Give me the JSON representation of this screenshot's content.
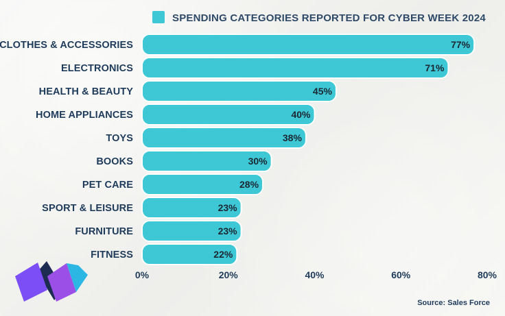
{
  "colors": {
    "bar": "#3ec8d6",
    "legend_swatch": "#3ec8d6",
    "label_text": "#1f3b5a",
    "value_text": "#1b2733",
    "logo_purple": "#7b4ef6",
    "logo_magenta": "#9b4fe7",
    "logo_cyan": "#2bb6e3",
    "logo_navy": "#1e2c54"
  },
  "chart_data": {
    "type": "bar",
    "orientation": "horizontal",
    "legend": "SPENDING CATEGORIES REPORTED FOR CYBER WEEK 2024",
    "legend_position": "top",
    "categories": [
      "CLOTHES & ACCESSORIES",
      "ELECTRONICS",
      "HEALTH & BEAUTY",
      "HOME APPLIANCES",
      "TOYS",
      "BOOKS",
      "PET CARE",
      "SPORT & LEISURE",
      "FURNITURE",
      "FITNESS"
    ],
    "values": [
      77,
      71,
      45,
      40,
      38,
      30,
      28,
      23,
      23,
      22
    ],
    "value_labels": [
      "77%",
      "71%",
      "45%",
      "40%",
      "38%",
      "30%",
      "28%",
      "23%",
      "23%",
      "22%"
    ],
    "xlim": [
      0,
      80
    ],
    "x_ticks": [
      0,
      20,
      40,
      60,
      80
    ],
    "x_tick_labels": [
      "0%",
      "20%",
      "40%",
      "60%",
      "80%"
    ],
    "grid": false
  },
  "source": "Source: Sales Force"
}
